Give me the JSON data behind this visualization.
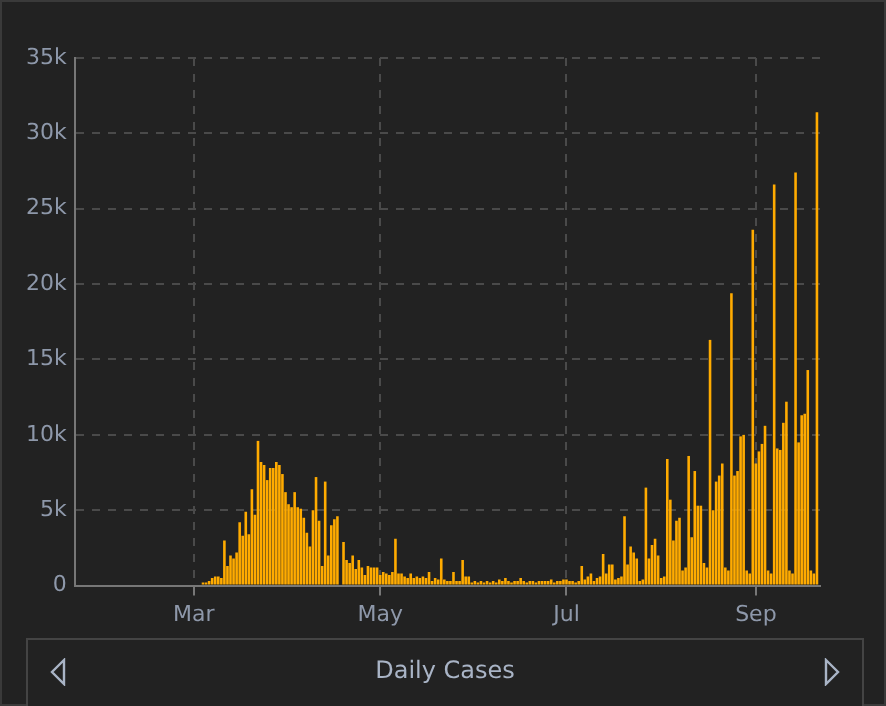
{
  "chart_data": {
    "type": "bar",
    "title": "Daily Cases",
    "x": [
      "--03-04",
      "--03-05",
      "--03-06",
      "--03-07",
      "--03-08",
      "--03-09",
      "--03-10",
      "--03-11",
      "--03-12",
      "--03-13",
      "--03-14",
      "--03-15",
      "--03-16",
      "--03-17",
      "--03-18",
      "--03-19",
      "--03-20",
      "--03-21",
      "--03-22",
      "--03-23",
      "--03-24",
      "--03-25",
      "--03-26",
      "--03-27",
      "--03-28",
      "--03-29",
      "--03-30",
      "--03-31",
      "--04-01",
      "--04-02",
      "--04-03",
      "--04-04",
      "--04-05",
      "--04-06",
      "--04-07",
      "--04-08",
      "--04-09",
      "--04-10",
      "--04-11",
      "--04-12",
      "--04-13",
      "--04-14",
      "--04-15",
      "--04-16",
      "--04-17",
      "--04-18",
      "--04-19",
      "--04-20",
      "--04-21",
      "--04-22",
      "--04-23",
      "--04-24",
      "--04-25",
      "--04-26",
      "--04-27",
      "--04-28",
      "--04-29",
      "--04-30",
      "--05-01",
      "--05-02",
      "--05-03",
      "--05-04",
      "--05-05",
      "--05-06",
      "--05-07",
      "--05-08",
      "--05-09",
      "--05-10",
      "--05-11",
      "--05-12",
      "--05-13",
      "--05-14",
      "--05-15",
      "--05-16",
      "--05-17",
      "--05-18",
      "--05-19",
      "--05-20",
      "--05-21",
      "--05-22",
      "--05-23",
      "--05-24",
      "--05-25",
      "--05-26",
      "--05-27",
      "--05-28",
      "--05-29",
      "--05-30",
      "--05-31",
      "--06-01",
      "--06-02",
      "--06-03",
      "--06-04",
      "--06-05",
      "--06-06",
      "--06-07",
      "--06-08",
      "--06-09",
      "--06-10",
      "--06-11",
      "--06-12",
      "--06-13",
      "--06-14",
      "--06-15",
      "--06-16",
      "--06-17",
      "--06-18",
      "--06-19",
      "--06-20",
      "--06-21",
      "--06-22",
      "--06-23",
      "--06-24",
      "--06-25",
      "--06-26",
      "--06-27",
      "--06-28",
      "--06-29",
      "--06-30",
      "--07-01",
      "--07-02",
      "--07-03",
      "--07-04",
      "--07-05",
      "--07-06",
      "--07-07",
      "--07-08",
      "--07-09",
      "--07-10",
      "--07-11",
      "--07-12",
      "--07-13",
      "--07-14",
      "--07-15",
      "--07-16",
      "--07-17",
      "--07-18",
      "--07-19",
      "--07-20",
      "--07-21",
      "--07-22",
      "--07-23",
      "--07-24",
      "--07-25",
      "--07-26",
      "--07-27",
      "--07-28",
      "--07-29",
      "--07-30",
      "--07-31",
      "--08-01",
      "--08-02",
      "--08-03",
      "--08-04",
      "--08-05",
      "--08-06",
      "--08-07",
      "--08-08",
      "--08-09",
      "--08-10",
      "--08-11",
      "--08-12",
      "--08-13",
      "--08-14",
      "--08-15",
      "--08-16",
      "--08-17",
      "--08-18",
      "--08-19",
      "--08-20",
      "--08-21",
      "--08-22",
      "--08-23",
      "--08-24",
      "--08-25",
      "--08-26",
      "--08-27",
      "--08-28",
      "--08-29",
      "--08-30",
      "--08-31",
      "--09-01",
      "--09-02",
      "--09-03",
      "--09-04",
      "--09-05",
      "--09-06",
      "--09-07",
      "--09-08",
      "--09-09",
      "--09-10",
      "--09-11",
      "--09-12",
      "--09-13",
      "--09-14",
      "--09-15",
      "--09-16",
      "--09-17",
      "--09-18",
      "--09-19",
      "--09-20",
      "--09-21"
    ],
    "values": [
      200,
      200,
      300,
      500,
      600,
      600,
      500,
      3000,
      1300,
      2000,
      1800,
      2200,
      4200,
      3300,
      4900,
      3400,
      6400,
      4700,
      9600,
      8200,
      8000,
      7000,
      7800,
      7800,
      8200,
      8000,
      7400,
      6200,
      5400,
      5200,
      6200,
      5200,
      5100,
      4500,
      3500,
      2600,
      5000,
      7200,
      4300,
      1300,
      6900,
      2000,
      4000,
      4400,
      4600,
      null,
      2900,
      1700,
      1500,
      2000,
      1100,
      1700,
      1200,
      700,
      1300,
      1200,
      1200,
      1200,
      700,
      900,
      800,
      700,
      900,
      3100,
      800,
      800,
      600,
      500,
      800,
      500,
      600,
      500,
      600,
      500,
      900,
      300,
      500,
      400,
      1800,
      400,
      300,
      300,
      900,
      300,
      300,
      1700,
      600,
      600,
      200,
      300,
      200,
      300,
      200,
      300,
      200,
      300,
      200,
      400,
      300,
      500,
      300,
      200,
      300,
      300,
      500,
      300,
      200,
      300,
      300,
      200,
      300,
      300,
      300,
      300,
      400,
      200,
      300,
      300,
      400,
      400,
      300,
      300,
      200,
      300,
      1300,
      400,
      600,
      800,
      300,
      500,
      600,
      2100,
      800,
      1400,
      1400,
      400,
      500,
      600,
      4600,
      1400,
      2600,
      2200,
      1800,
      300,
      400,
      6500,
      1800,
      2700,
      3100,
      2000,
      500,
      600,
      8400,
      5700,
      3000,
      4300,
      4500,
      1000,
      1200,
      8600,
      3200,
      7600,
      5300,
      5300,
      1500,
      1200,
      16300,
      5000,
      6900,
      7300,
      8100,
      1200,
      1000,
      19400,
      7300,
      7600,
      9900,
      10000,
      1000,
      800,
      23600,
      8100,
      8900,
      9400,
      10600,
      1000,
      800,
      26600,
      9100,
      9000,
      10800,
      12200,
      1000,
      800,
      27400,
      9500,
      11300,
      11400,
      14300,
      1000,
      800,
      31400
    ],
    "color": "#ffab00",
    "xlim": [
      "--01-22",
      "--09-22"
    ],
    "xticks": [
      {
        "value": "--03-01",
        "label": "Mar"
      },
      {
        "value": "--05-01",
        "label": "May"
      },
      {
        "value": "--07-01",
        "label": "Jul"
      },
      {
        "value": "--09-01",
        "label": "Sep"
      }
    ],
    "ylim": [
      0,
      35000
    ],
    "yticks": [
      0,
      {
        "value": 5000,
        "label": "5k"
      },
      {
        "value": 10000,
        "label": "10k"
      },
      {
        "value": 15000,
        "label": "15k"
      },
      {
        "value": 20000,
        "label": "20k"
      },
      {
        "value": 25000,
        "label": "25k"
      },
      {
        "value": 30000,
        "label": "30k"
      },
      {
        "value": 35000,
        "label": "35k"
      }
    ],
    "grid": true,
    "legend": false
  }
}
